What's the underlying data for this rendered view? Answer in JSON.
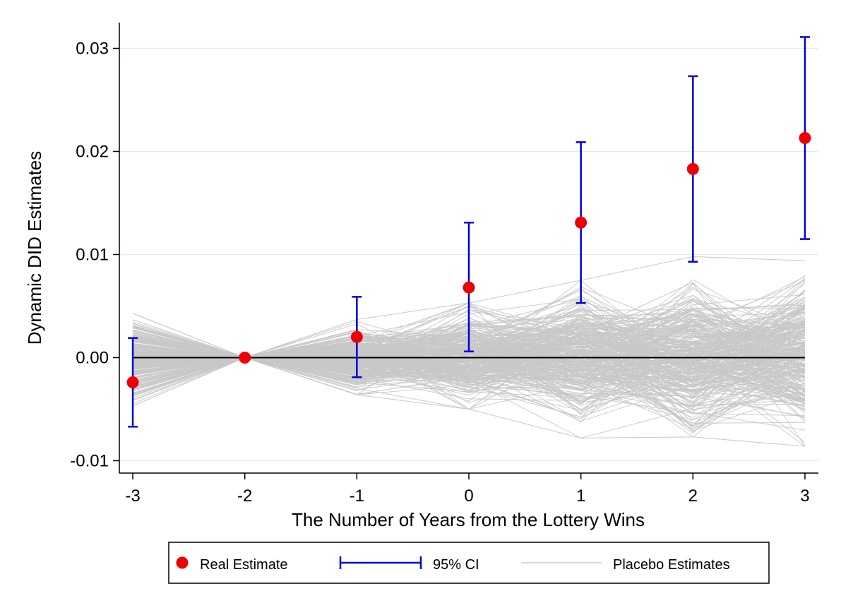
{
  "chart_data": {
    "type": "scatter",
    "xlabel": "The Number of Years from the Lottery Wins",
    "ylabel": "Dynamic DID Estimates",
    "x": [
      -3,
      -2,
      -1,
      0,
      1,
      2,
      3
    ],
    "xlim": [
      -3.12,
      3.12
    ],
    "ylim": [
      -0.0112,
      0.0325
    ],
    "x_ticks": [
      -3,
      -2,
      -1,
      0,
      1,
      2,
      3
    ],
    "x_tick_labels": [
      "-3",
      "-2",
      "-1",
      "0",
      "1",
      "2",
      "3"
    ],
    "y_ticks": [
      -0.01,
      0,
      0.01,
      0.02,
      0.03
    ],
    "y_tick_labels": [
      "-0.01",
      "0.00",
      "0.01",
      "0.02",
      "0.03"
    ],
    "grid": true,
    "reference_line_y": 0,
    "series": [
      {
        "name": "Real Estimate",
        "kind": "scatter",
        "color": "#ee0000",
        "values": [
          -0.0024,
          0.0,
          0.002,
          0.0068,
          0.0131,
          0.0183,
          0.0213
        ]
      },
      {
        "name": "95% CI",
        "kind": "errorbar",
        "color": "#0000dd",
        "lower": [
          -0.0067,
          null,
          -0.0019,
          0.0006,
          0.0053,
          0.0093,
          0.0115
        ],
        "upper": [
          0.0019,
          null,
          0.0059,
          0.0131,
          0.0209,
          0.0273,
          0.0311
        ]
      },
      {
        "name": "Placebo Estimates",
        "kind": "line-band",
        "color": "#c8c8c8",
        "count": 300,
        "approx_max": [
          0.0043,
          0.0,
          0.0037,
          0.0053,
          0.0075,
          0.0098,
          0.0094
        ],
        "approx_min": [
          -0.0047,
          0.0,
          -0.0036,
          -0.005,
          -0.0078,
          -0.0077,
          -0.0086
        ],
        "typical_spread_sd": [
          0.0018,
          0.0,
          0.0014,
          0.0021,
          0.0028,
          0.0032,
          0.0034
        ]
      }
    ],
    "legend": {
      "placement": "bottom",
      "entries": [
        "Real Estimate",
        "95% CI",
        "Placebo Estimates"
      ]
    }
  }
}
